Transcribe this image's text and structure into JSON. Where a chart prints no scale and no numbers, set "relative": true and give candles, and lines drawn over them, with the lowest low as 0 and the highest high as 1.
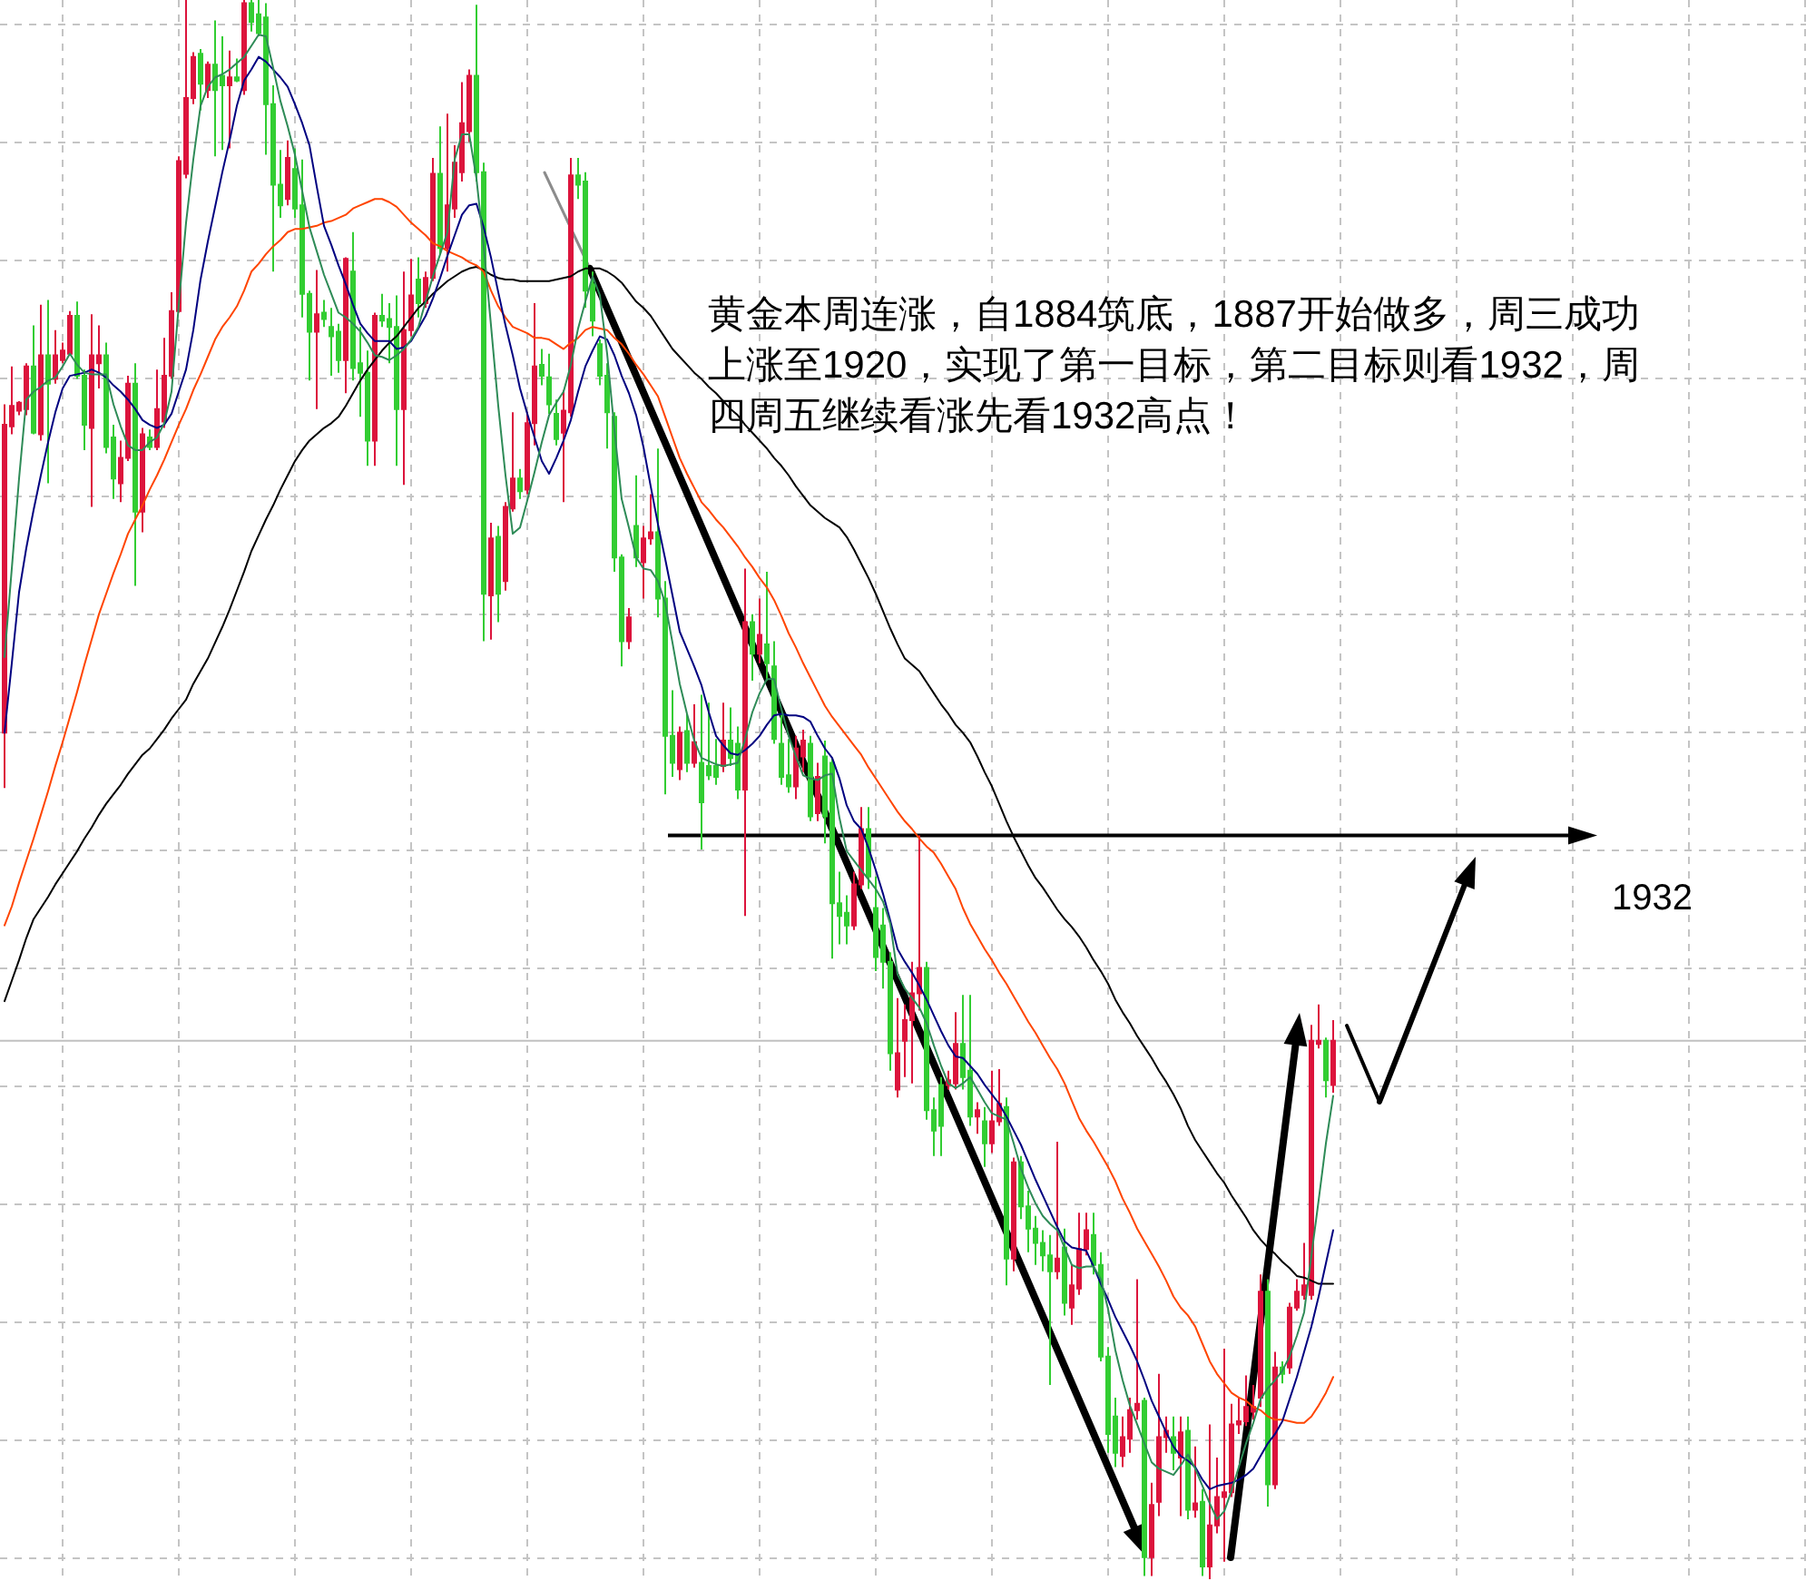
{
  "chart_data": {
    "type": "candlestick",
    "relative": true,
    "grid": true,
    "categories": [
      null,
      null,
      null,
      null,
      null,
      null,
      null,
      null,
      null,
      null,
      null,
      null,
      null,
      null,
      null,
      null,
      null,
      null,
      null,
      null,
      null,
      null,
      null,
      null,
      null,
      null,
      null,
      null,
      null,
      null,
      null,
      null,
      null,
      null,
      null,
      null,
      null,
      null,
      null,
      null,
      null,
      null,
      null,
      null,
      null,
      null,
      null,
      null,
      null,
      null,
      null,
      null,
      null,
      null,
      null,
      null,
      null,
      null,
      null,
      null,
      null,
      null,
      null,
      null,
      null,
      null,
      null,
      null,
      null,
      null,
      null,
      null,
      null,
      null,
      null,
      null,
      null,
      null,
      null,
      null,
      null,
      null,
      null,
      null,
      null,
      null,
      null,
      null,
      null,
      null,
      null,
      null,
      null,
      null,
      null,
      null,
      null,
      null,
      null,
      null,
      null,
      null,
      null,
      null,
      null,
      null,
      null,
      null,
      null,
      null,
      null,
      null,
      null,
      null,
      null,
      null,
      null,
      null,
      null,
      null,
      null,
      null,
      null,
      null,
      null,
      null,
      null,
      null,
      null,
      null,
      null,
      null,
      null,
      null,
      null,
      null,
      null,
      null,
      null,
      null,
      null,
      null,
      null,
      null,
      null,
      null,
      null,
      null,
      null,
      null,
      null,
      null,
      null,
      null,
      null,
      null,
      null,
      null,
      null,
      null,
      null,
      null,
      null,
      null,
      null,
      null,
      null,
      null,
      null,
      null,
      null,
      null,
      null,
      null,
      null,
      null,
      null,
      null,
      null,
      null,
      null,
      null,
      null,
      null
    ],
    "ohlc": [
      [
        0.536,
        0.744,
        0.501,
        0.731
      ],
      [
        0.73,
        0.768,
        0.725,
        0.743
      ],
      [
        0.74,
        0.746,
        0.737,
        0.745
      ],
      [
        0.741,
        0.77,
        0.737,
        0.768
      ],
      [
        0.768,
        0.794,
        0.725,
        0.726
      ],
      [
        0.725,
        0.807,
        0.721,
        0.775
      ],
      [
        0.775,
        0.81,
        0.694,
        0.757
      ],
      [
        0.76,
        0.791,
        0.757,
        0.775
      ],
      [
        0.772,
        0.783,
        0.77,
        0.778
      ],
      [
        0.776,
        0.803,
        0.775,
        0.8
      ],
      [
        0.8,
        0.809,
        0.76,
        0.762
      ],
      [
        0.762,
        0.766,
        0.715,
        0.731
      ],
      [
        0.729,
        0.801,
        0.679,
        0.775
      ],
      [
        0.77,
        0.794,
        0.754,
        0.775
      ],
      [
        0.775,
        0.783,
        0.713,
        0.717
      ],
      [
        0.723,
        0.731,
        0.684,
        0.697
      ],
      [
        0.694,
        0.721,
        0.682,
        0.71
      ],
      [
        0.71,
        0.762,
        0.708,
        0.757
      ],
      [
        0.757,
        0.77,
        0.629,
        0.676
      ],
      [
        0.676,
        0.729,
        0.663,
        0.725
      ],
      [
        0.723,
        0.728,
        0.715,
        0.717
      ],
      [
        0.717,
        0.766,
        0.715,
        0.741
      ],
      [
        0.733,
        0.786,
        0.729,
        0.762
      ],
      [
        0.762,
        0.815,
        0.76,
        0.803
      ],
      [
        0.803,
        0.901,
        0.802,
        0.898
      ],
      [
        0.89,
        1,
        0.887,
        0.938
      ],
      [
        0.938,
        0.967,
        0.934,
        0.964
      ],
      [
        0.966,
        0.969,
        0.93,
        0.947
      ],
      [
        0.943,
        0.961,
        0.938,
        0.959
      ],
      [
        0.959,
        0.987,
        0.901,
        0.943
      ],
      [
        0.952,
        0.977,
        0.905,
        0.946
      ],
      [
        0.946,
        0.968,
        0.906,
        0.951
      ],
      [
        0.951,
        0.963,
        0.948,
        0.949
      ],
      [
        0.943,
        1,
        0.94,
        0.998
      ],
      [
        0.998,
        1,
        0.98,
        0.986
      ],
      [
        0.991,
        1,
        0.977,
        0.979
      ],
      [
        0.989,
        0.998,
        0.902,
        0.934
      ],
      [
        0.934,
        0.946,
        0.828,
        0.883
      ],
      [
        0.883,
        0.905,
        0.862,
        0.87
      ],
      [
        0.874,
        0.911,
        0.87,
        0.9
      ],
      [
        0.893,
        0.906,
        0.862,
        0.868
      ],
      [
        0.87,
        0.899,
        0.799,
        0.814
      ],
      [
        0.814,
        0.816,
        0.759,
        0.79
      ],
      [
        0.79,
        0.829,
        0.741,
        0.801
      ],
      [
        0.802,
        0.81,
        0.793,
        0.798
      ],
      [
        0.793,
        0.805,
        0.762,
        0.787
      ],
      [
        0.79,
        0.795,
        0.764,
        0.772
      ],
      [
        0.772,
        0.837,
        0.751,
        0.836
      ],
      [
        0.828,
        0.853,
        0.759,
        0.767
      ],
      [
        0.77,
        0.793,
        0.736,
        0.764
      ],
      [
        0.764,
        0.778,
        0.705,
        0.721
      ],
      [
        0.721,
        0.802,
        0.705,
        0.8
      ],
      [
        0.8,
        0.814,
        0.793,
        0.797
      ],
      [
        0.798,
        0.808,
        0.77,
        0.793
      ],
      [
        0.793,
        0.813,
        0.705,
        0.741
      ],
      [
        0.741,
        0.828,
        0.693,
        0.791
      ],
      [
        0.791,
        0.836,
        0.787,
        0.813
      ],
      [
        0.823,
        0.837,
        0.799,
        0.808
      ],
      [
        0.808,
        0.828,
        0.805,
        0.824
      ],
      [
        0.824,
        0.9,
        0.822,
        0.89
      ],
      [
        0.89,
        0.92,
        0.839,
        0.843
      ],
      [
        0.843,
        0.928,
        0.828,
        0.87
      ],
      [
        0.868,
        0.908,
        0.862,
        0.897
      ],
      [
        0.891,
        0.948,
        0.885,
        0.922
      ],
      [
        0.917,
        0.956,
        0.91,
        0.952
      ],
      [
        0.952,
        0.997,
        0.885,
        0.891
      ],
      [
        0.891,
        0.897,
        0.594,
        0.624
      ],
      [
        0.623,
        0.669,
        0.595,
        0.659
      ],
      [
        0.66,
        0.667,
        0.606,
        0.624
      ],
      [
        0.632,
        0.682,
        0.626,
        0.679
      ],
      [
        0.678,
        0.739,
        0.676,
        0.697
      ],
      [
        0.697,
        0.703,
        0.684,
        0.689
      ],
      [
        0.69,
        0.739,
        0.687,
        0.732
      ],
      [
        0.732,
        0.808,
        0.718,
        0.768
      ],
      [
        0.769,
        0.779,
        0.756,
        0.762
      ],
      [
        0.761,
        0.776,
        0.738,
        0.744
      ],
      [
        0.738,
        0.747,
        0.718,
        0.722
      ],
      [
        0.726,
        0.753,
        0.682,
        0.74
      ],
      [
        0.739,
        0.9,
        0.736,
        0.889
      ],
      [
        0.889,
        0.9,
        0.874,
        0.883
      ],
      [
        0.885,
        0.891,
        0.805,
        0.816
      ],
      [
        0.82,
        0.828,
        0.787,
        0.797
      ],
      [
        0.782,
        0.785,
        0.756,
        0.762
      ],
      [
        0.762,
        0.77,
        0.716,
        0.739
      ],
      [
        0.736,
        0.739,
        0.638,
        0.647
      ],
      [
        0.647,
        0.649,
        0.578,
        0.594
      ],
      [
        0.594,
        0.615,
        0.589,
        0.609
      ],
      [
        0.667,
        0.699,
        0.641,
        0.647
      ],
      [
        0.644,
        0.667,
        0.621,
        0.659
      ],
      [
        0.659,
        0.687,
        0.655,
        0.663
      ],
      [
        0.663,
        0.716,
        0.609,
        0.621
      ],
      [
        0.621,
        0.632,
        0.497,
        0.534
      ],
      [
        0.534,
        0.563,
        0.508,
        0.517
      ],
      [
        0.513,
        0.54,
        0.506,
        0.536
      ],
      [
        0.537,
        0.548,
        0.511,
        0.517
      ],
      [
        0.517,
        0.554,
        0.514,
        0.53
      ],
      [
        0.517,
        0.56,
        0.462,
        0.492
      ],
      [
        0.515,
        0.555,
        0.506,
        0.509
      ],
      [
        0.515,
        0.532,
        0.503,
        0.508
      ],
      [
        0.515,
        0.555,
        0.511,
        0.531
      ],
      [
        0.531,
        0.552,
        0.515,
        0.52
      ],
      [
        0.529,
        0.54,
        0.494,
        0.5
      ],
      [
        0.5,
        0.64,
        0.42,
        0.606
      ],
      [
        0.606,
        0.611,
        0.569,
        0.586
      ],
      [
        0.586,
        0.621,
        0.58,
        0.598
      ],
      [
        0.592,
        0.638,
        0.569,
        0.58
      ],
      [
        0.578,
        0.594,
        0.529,
        0.532
      ],
      [
        0.529,
        0.548,
        0.503,
        0.508
      ],
      [
        0.509,
        0.532,
        0.498,
        0.502
      ],
      [
        0.502,
        0.534,
        0.494,
        0.526
      ],
      [
        0.521,
        0.538,
        0.511,
        0.531
      ],
      [
        0.529,
        0.534,
        0.48,
        0.483
      ],
      [
        0.485,
        0.517,
        0.48,
        0.508
      ],
      [
        0.521,
        0.531,
        0.466,
        0.483
      ],
      [
        0.517,
        0.52,
        0.393,
        0.428
      ],
      [
        0.428,
        0.448,
        0.402,
        0.42
      ],
      [
        0.422,
        0.433,
        0.402,
        0.414
      ],
      [
        0.414,
        0.448,
        0.411,
        0.44
      ],
      [
        0.44,
        0.489,
        0.437,
        0.475
      ],
      [
        0.475,
        0.489,
        0.437,
        0.445
      ],
      [
        0.425,
        0.445,
        0.385,
        0.394
      ],
      [
        0.414,
        0.425,
        0.374,
        0.391
      ],
      [
        0.391,
        0.397,
        0.322,
        0.333
      ],
      [
        0.31,
        0.368,
        0.305,
        0.333
      ],
      [
        0.341,
        0.364,
        0.318,
        0.354
      ],
      [
        0.354,
        0.391,
        0.314,
        0.371
      ],
      [
        0.371,
        0.471,
        0.36,
        0.387
      ],
      [
        0.387,
        0.391,
        0.291,
        0.297
      ],
      [
        0.297,
        0.305,
        0.268,
        0.284
      ],
      [
        0.313,
        0.318,
        0.268,
        0.287
      ],
      [
        0.313,
        0.322,
        0.31,
        0.316
      ],
      [
        0.314,
        0.359,
        0.31,
        0.339
      ],
      [
        0.339,
        0.37,
        0.31,
        0.318
      ],
      [
        0.322,
        0.37,
        0.287,
        0.293
      ],
      [
        0.293,
        0.302,
        0.282,
        0.297
      ],
      [
        0.29,
        0.299,
        0.261,
        0.276
      ],
      [
        0.276,
        0.322,
        0.27,
        0.29
      ],
      [
        0.29,
        0.323,
        0.287,
        0.301
      ],
      [
        0.299,
        0.305,
        0.186,
        0.203
      ],
      [
        0.203,
        0.267,
        0.195,
        0.264
      ],
      [
        0.264,
        0.268,
        0.228,
        0.236
      ],
      [
        0.236,
        0.246,
        0.207,
        0.222
      ],
      [
        0.222,
        0.23,
        0.199,
        0.213
      ],
      [
        0.213,
        0.221,
        0.195,
        0.205
      ],
      [
        0.205,
        0.218,
        0.123,
        0.195
      ],
      [
        0.195,
        0.277,
        0.19,
        0.203
      ],
      [
        0.21,
        0.222,
        0.167,
        0.175
      ],
      [
        0.172,
        0.199,
        0.161,
        0.186
      ],
      [
        0.184,
        0.232,
        0.18,
        0.209
      ],
      [
        0.209,
        0.232,
        0.205,
        0.221
      ],
      [
        0.218,
        0.232,
        0.193,
        0.199
      ],
      [
        0.199,
        0.207,
        0.138,
        0.141
      ],
      [
        0.141,
        0.147,
        0.08,
        0.092
      ],
      [
        0.103,
        0.115,
        0.071,
        0.08
      ],
      [
        0.078,
        0.103,
        0.071,
        0.09
      ],
      [
        0.089,
        0.115,
        0.08,
        0.107
      ],
      [
        0.107,
        0.19,
        0.101,
        0.111
      ],
      [
        0.113,
        0.115,
        0.002,
        0.014
      ],
      [
        0.014,
        0.061,
        0.002,
        0.047
      ],
      [
        0.049,
        0.13,
        0.04,
        0.09
      ],
      [
        0.09,
        0.103,
        0.08,
        0.094
      ],
      [
        0.09,
        0.103,
        0.069,
        0.08
      ],
      [
        0.077,
        0.103,
        0.04,
        0.093
      ],
      [
        0.094,
        0.103,
        0.038,
        0.044
      ],
      [
        0.044,
        0.084,
        0.039,
        0.048
      ],
      [
        0.049,
        0.057,
        0.002,
        0.008
      ],
      [
        0.008,
        0.098,
        0,
        0.034
      ],
      [
        0.034,
        0.077,
        0.029,
        0.052
      ],
      [
        0.052,
        0.146,
        0.011,
        0.055
      ],
      [
        0.055,
        0.111,
        0.052,
        0.098
      ],
      [
        0.098,
        0.115,
        0.092,
        0.1
      ],
      [
        0.1,
        0.129,
        0.097,
        0.109
      ],
      [
        0.106,
        0.123,
        0.101,
        0.109
      ],
      [
        0.115,
        0.193,
        0.109,
        0.182
      ],
      [
        0.182,
        0.19,
        0.046,
        0.06
      ],
      [
        0.06,
        0.144,
        0.057,
        0.134
      ],
      [
        0.134,
        0.138,
        0.124,
        0.13
      ],
      [
        0.134,
        0.175,
        0.13,
        0.172
      ],
      [
        0.172,
        0.19,
        0.17,
        0.182
      ],
      [
        0.18,
        0.213,
        0.177,
        0.186
      ],
      [
        0.18,
        0.351,
        0.177,
        0.341
      ],
      [
        0.339,
        0.364,
        0.336,
        0.341
      ],
      [
        0.341,
        0.343,
        0.305,
        0.316
      ],
      [
        0.313,
        0.354,
        0.308,
        0.341
      ]
    ],
    "colors": [
      "#dc143c",
      "#dc143c",
      "#dc143c",
      "#dc143c",
      "#32cd32",
      "#dc143c",
      "#32cd32",
      "#dc143c",
      "#dc143c",
      "#dc143c",
      "#32cd32",
      "#32cd32",
      "#dc143c",
      "#dc143c",
      "#32cd32",
      "#32cd32",
      "#dc143c",
      "#dc143c",
      "#32cd32",
      "#dc143c",
      "#32cd32",
      "#dc143c",
      "#dc143c",
      "#dc143c",
      "#dc143c",
      "#dc143c",
      "#dc143c",
      "#32cd32",
      "#dc143c",
      "#32cd32",
      "#32cd32",
      "#dc143c",
      "#32cd32",
      "#dc143c",
      "#32cd32",
      "#32cd32",
      "#32cd32",
      "#32cd32",
      "#32cd32",
      "#dc143c",
      "#32cd32",
      "#32cd32",
      "#32cd32",
      "#dc143c",
      "#32cd32",
      "#32cd32",
      "#32cd32",
      "#dc143c",
      "#32cd32",
      "#32cd32",
      "#32cd32",
      "#dc143c",
      "#32cd32",
      "#32cd32",
      "#32cd32",
      "#dc143c",
      "#dc143c",
      "#32cd32",
      "#dc143c",
      "#dc143c",
      "#32cd32",
      "#dc143c",
      "#dc143c",
      "#dc143c",
      "#dc143c",
      "#32cd32",
      "#32cd32",
      "#dc143c",
      "#32cd32",
      "#dc143c",
      "#dc143c",
      "#32cd32",
      "#dc143c",
      "#dc143c",
      "#32cd32",
      "#32cd32",
      "#32cd32",
      "#dc143c",
      "#dc143c",
      "#32cd32",
      "#32cd32",
      "#32cd32",
      "#32cd32",
      "#32cd32",
      "#32cd32",
      "#32cd32",
      "#dc143c",
      "#32cd32",
      "#dc143c",
      "#dc143c",
      "#32cd32",
      "#32cd32",
      "#32cd32",
      "#dc143c",
      "#32cd32",
      "#dc143c",
      "#32cd32",
      "#32cd32",
      "#32cd32",
      "#dc143c",
      "#32cd32",
      "#32cd32",
      "#dc143c",
      "#32cd32",
      "#dc143c",
      "#32cd32",
      "#32cd32",
      "#32cd32",
      "#32cd32",
      "#dc143c",
      "#dc143c",
      "#32cd32",
      "#dc143c",
      "#32cd32",
      "#32cd32",
      "#32cd32",
      "#32cd32",
      "#dc143c",
      "#dc143c",
      "#32cd32",
      "#32cd32",
      "#32cd32",
      "#32cd32",
      "#dc143c",
      "#dc143c",
      "#dc143c",
      "#dc143c",
      "#32cd32",
      "#32cd32",
      "#32cd32",
      "#dc143c",
      "#dc143c",
      "#32cd32",
      "#32cd32",
      "#dc143c",
      "#32cd32",
      "#dc143c",
      "#dc143c",
      "#32cd32",
      "#dc143c",
      "#32cd32",
      "#32cd32",
      "#32cd32",
      "#32cd32",
      "#32cd32",
      "#dc143c",
      "#32cd32",
      "#dc143c",
      "#dc143c",
      "#dc143c",
      "#32cd32",
      "#32cd32",
      "#32cd32",
      "#32cd32",
      "#dc143c",
      "#dc143c",
      "#dc143c",
      "#32cd32",
      "#dc143c",
      "#dc143c",
      "#dc143c",
      "#32cd32",
      "#dc143c",
      "#32cd32",
      "#dc143c",
      "#32cd32",
      "#dc143c",
      "#dc143c",
      "#dc143c",
      "#dc143c",
      "#dc143c",
      "#dc143c",
      "#dc143c",
      "#dc143c",
      "#32cd32",
      "#dc143c",
      "#32cd32",
      "#dc143c",
      "#dc143c",
      "#dc143c",
      "#dc143c",
      "#dc143c",
      "#32cd32",
      "#dc143c"
    ],
    "series": [
      {
        "type": "line",
        "color": "#000000",
        "values": [
          0.366,
          0.379,
          0.392,
          0.406,
          0.418,
          0.425,
          0.432,
          0.44,
          0.447,
          0.454,
          0.461,
          0.469,
          0.476,
          0.484,
          0.491,
          0.497,
          0.503,
          0.51,
          0.516,
          0.522,
          0.526,
          0.532,
          0.538,
          0.545,
          0.551,
          0.557,
          0.567,
          0.575,
          0.583,
          0.593,
          0.603,
          0.614,
          0.626,
          0.638,
          0.651,
          0.661,
          0.671,
          0.68,
          0.69,
          0.699,
          0.708,
          0.715,
          0.721,
          0.725,
          0.729,
          0.732,
          0.736,
          0.743,
          0.751,
          0.759,
          0.766,
          0.772,
          0.778,
          0.783,
          0.787,
          0.793,
          0.799,
          0.805,
          0.809,
          0.814,
          0.818,
          0.822,
          0.825,
          0.828,
          0.83,
          0.831,
          0.829,
          0.826,
          0.824,
          0.823,
          0.823,
          0.822,
          0.822,
          0.822,
          0.822,
          0.822,
          0.823,
          0.824,
          0.825,
          0.828,
          0.83,
          0.83,
          0.83,
          0.828,
          0.825,
          0.821,
          0.815,
          0.809,
          0.805,
          0.8,
          0.793,
          0.786,
          0.779,
          0.774,
          0.769,
          0.764,
          0.76,
          0.755,
          0.751,
          0.746,
          0.741,
          0.737,
          0.731,
          0.726,
          0.721,
          0.716,
          0.71,
          0.705,
          0.699,
          0.692,
          0.686,
          0.68,
          0.676,
          0.672,
          0.669,
          0.666,
          0.66,
          0.652,
          0.643,
          0.634,
          0.624,
          0.613,
          0.602,
          0.592,
          0.583,
          0.579,
          0.575,
          0.568,
          0.561,
          0.554,
          0.548,
          0.541,
          0.536,
          0.53,
          0.521,
          0.511,
          0.502,
          0.491,
          0.48,
          0.47,
          0.461,
          0.452,
          0.444,
          0.438,
          0.431,
          0.424,
          0.418,
          0.413,
          0.407,
          0.4,
          0.392,
          0.385,
          0.377,
          0.367,
          0.359,
          0.352,
          0.344,
          0.337,
          0.33,
          0.322,
          0.315,
          0.307,
          0.298,
          0.287,
          0.278,
          0.271,
          0.264,
          0.257,
          0.251,
          0.243,
          0.236,
          0.229,
          0.221,
          0.215,
          0.21,
          0.206,
          0.201,
          0.197,
          0.192,
          0.191,
          0.189,
          0.187,
          0.187,
          0.187
        ]
      },
      {
        "type": "line",
        "color": "#ff4500",
        "values": [
          0.414,
          0.426,
          0.441,
          0.455,
          0.469,
          0.484,
          0.499,
          0.515,
          0.53,
          0.546,
          0.562,
          0.579,
          0.595,
          0.611,
          0.624,
          0.637,
          0.649,
          0.662,
          0.671,
          0.68,
          0.69,
          0.699,
          0.709,
          0.72,
          0.731,
          0.741,
          0.753,
          0.763,
          0.774,
          0.785,
          0.793,
          0.799,
          0.806,
          0.816,
          0.828,
          0.833,
          0.839,
          0.844,
          0.848,
          0.853,
          0.855,
          0.855,
          0.856,
          0.857,
          0.859,
          0.86,
          0.862,
          0.864,
          0.868,
          0.87,
          0.872,
          0.874,
          0.874,
          0.872,
          0.869,
          0.864,
          0.859,
          0.855,
          0.851,
          0.846,
          0.844,
          0.841,
          0.839,
          0.837,
          0.834,
          0.832,
          0.828,
          0.816,
          0.806,
          0.799,
          0.793,
          0.791,
          0.789,
          0.786,
          0.786,
          0.785,
          0.782,
          0.779,
          0.783,
          0.786,
          0.791,
          0.793,
          0.792,
          0.791,
          0.786,
          0.782,
          0.776,
          0.769,
          0.763,
          0.756,
          0.749,
          0.736,
          0.723,
          0.71,
          0.7,
          0.691,
          0.682,
          0.677,
          0.671,
          0.666,
          0.66,
          0.654,
          0.647,
          0.641,
          0.634,
          0.628,
          0.62,
          0.61,
          0.599,
          0.59,
          0.58,
          0.571,
          0.562,
          0.553,
          0.546,
          0.54,
          0.534,
          0.528,
          0.522,
          0.514,
          0.507,
          0.5,
          0.493,
          0.486,
          0.48,
          0.475,
          0.469,
          0.464,
          0.46,
          0.453,
          0.445,
          0.437,
          0.425,
          0.415,
          0.407,
          0.399,
          0.392,
          0.384,
          0.377,
          0.369,
          0.361,
          0.353,
          0.346,
          0.338,
          0.33,
          0.323,
          0.314,
          0.303,
          0.292,
          0.284,
          0.277,
          0.269,
          0.261,
          0.252,
          0.241,
          0.232,
          0.222,
          0.214,
          0.206,
          0.198,
          0.189,
          0.179,
          0.172,
          0.167,
          0.16,
          0.149,
          0.138,
          0.13,
          0.124,
          0.118,
          0.115,
          0.113,
          0.109,
          0.107,
          0.103,
          0.101,
          0.101,
          0.1,
          0.099,
          0.099,
          0.103,
          0.11,
          0.118,
          0.128
        ]
      },
      {
        "type": "line",
        "color": "#000080",
        "values": [
          0.536,
          0.58,
          0.625,
          0.653,
          0.677,
          0.699,
          0.72,
          0.739,
          0.754,
          0.762,
          0.763,
          0.764,
          0.766,
          0.764,
          0.761,
          0.756,
          0.752,
          0.747,
          0.741,
          0.734,
          0.731,
          0.729,
          0.731,
          0.738,
          0.752,
          0.766,
          0.791,
          0.823,
          0.847,
          0.869,
          0.891,
          0.911,
          0.933,
          0.949,
          0.956,
          0.964,
          0.961,
          0.956,
          0.951,
          0.945,
          0.934,
          0.922,
          0.908,
          0.882,
          0.857,
          0.845,
          0.832,
          0.82,
          0.807,
          0.795,
          0.789,
          0.784,
          0.784,
          0.784,
          0.779,
          0.78,
          0.784,
          0.792,
          0.8,
          0.811,
          0.824,
          0.838,
          0.851,
          0.864,
          0.87,
          0.871,
          0.856,
          0.837,
          0.815,
          0.794,
          0.775,
          0.754,
          0.738,
          0.723,
          0.708,
          0.7,
          0.71,
          0.721,
          0.734,
          0.752,
          0.768,
          0.778,
          0.787,
          0.785,
          0.775,
          0.762,
          0.751,
          0.737,
          0.717,
          0.692,
          0.668,
          0.646,
          0.623,
          0.6,
          0.589,
          0.578,
          0.566,
          0.549,
          0.534,
          0.528,
          0.523,
          0.522,
          0.525,
          0.529,
          0.534,
          0.541,
          0.547,
          0.548,
          0.547,
          0.547,
          0.546,
          0.543,
          0.534,
          0.526,
          0.52,
          0.507,
          0.49,
          0.48,
          0.475,
          0.463,
          0.449,
          0.434,
          0.417,
          0.399,
          0.391,
          0.384,
          0.376,
          0.367,
          0.357,
          0.347,
          0.338,
          0.331,
          0.33,
          0.325,
          0.32,
          0.313,
          0.307,
          0.301,
          0.293,
          0.284,
          0.275,
          0.264,
          0.253,
          0.243,
          0.233,
          0.223,
          0.214,
          0.21,
          0.209,
          0.208,
          0.198,
          0.187,
          0.177,
          0.166,
          0.157,
          0.148,
          0.138,
          0.126,
          0.113,
          0.103,
          0.093,
          0.084,
          0.078,
          0.075,
          0.071,
          0.063,
          0.057,
          0.059,
          0.06,
          0.061,
          0.063,
          0.066,
          0.07,
          0.078,
          0.086,
          0.092,
          0.1,
          0.114,
          0.128,
          0.144,
          0.16,
          0.179,
          0.2,
          0.221
        ]
      },
      {
        "type": "line",
        "color": "#2e8b57",
        "values": [
          0.584,
          0.64,
          0.697,
          0.747,
          0.752,
          0.755,
          0.759,
          0.761,
          0.768,
          0.776,
          0.769,
          0.764,
          0.763,
          0.763,
          0.763,
          0.744,
          0.73,
          0.718,
          0.715,
          0.715,
          0.72,
          0.723,
          0.732,
          0.752,
          0.807,
          0.859,
          0.899,
          0.933,
          0.945,
          0.951,
          0.953,
          0.956,
          0.96,
          0.964,
          0.971,
          0.978,
          0.977,
          0.957,
          0.936,
          0.92,
          0.902,
          0.879,
          0.856,
          0.841,
          0.826,
          0.814,
          0.802,
          0.799,
          0.795,
          0.79,
          0.783,
          0.775,
          0.774,
          0.772,
          0.775,
          0.779,
          0.785,
          0.793,
          0.809,
          0.825,
          0.839,
          0.853,
          0.899,
          0.915,
          0.915,
          0.887,
          0.844,
          0.794,
          0.743,
          0.699,
          0.662,
          0.666,
          0.683,
          0.701,
          0.72,
          0.737,
          0.745,
          0.752,
          0.769,
          0.792,
          0.809,
          0.825,
          0.813,
          0.776,
          0.728,
          0.684,
          0.666,
          0.647,
          0.64,
          0.639,
          0.632,
          0.618,
          0.593,
          0.567,
          0.548,
          0.531,
          0.52,
          0.518,
          0.516,
          0.515,
          0.516,
          0.517,
          0.532,
          0.549,
          0.561,
          0.57,
          0.57,
          0.551,
          0.534,
          0.521,
          0.509,
          0.507,
          0.506,
          0.509,
          0.51,
          0.482,
          0.461,
          0.455,
          0.449,
          0.443,
          0.437,
          0.429,
          0.415,
          0.383,
          0.374,
          0.368,
          0.362,
          0.352,
          0.338,
          0.325,
          0.314,
          0.311,
          0.314,
          0.318,
          0.31,
          0.302,
          0.295,
          0.293,
          0.291,
          0.276,
          0.26,
          0.248,
          0.238,
          0.23,
          0.225,
          0.221,
          0.21,
          0.199,
          0.197,
          0.198,
          0.198,
          0.19,
          0.171,
          0.145,
          0.126,
          0.11,
          0.098,
          0.086,
          0.074,
          0.07,
          0.068,
          0.066,
          0.072,
          0.079,
          0.07,
          0.059,
          0.048,
          0.038,
          0.043,
          0.056,
          0.071,
          0.086,
          0.099,
          0.114,
          0.121,
          0.126,
          0.132,
          0.141,
          0.154,
          0.169,
          0.205,
          0.24,
          0.276,
          0.306
        ]
      }
    ],
    "ref_lines": [
      {
        "axis": "y",
        "value": 0.341,
        "color": "#c0c0c0"
      },
      {
        "axis": "y",
        "value": 0.471,
        "color": "#000000"
      }
    ],
    "annotations": [
      "黄金本周连涨，自1884筑底，1887开始做多，周三成功上涨至1920，实现了第一目标，第二目标则看1932，周四周五继续看涨先看1932高点！",
      "1932"
    ]
  }
}
